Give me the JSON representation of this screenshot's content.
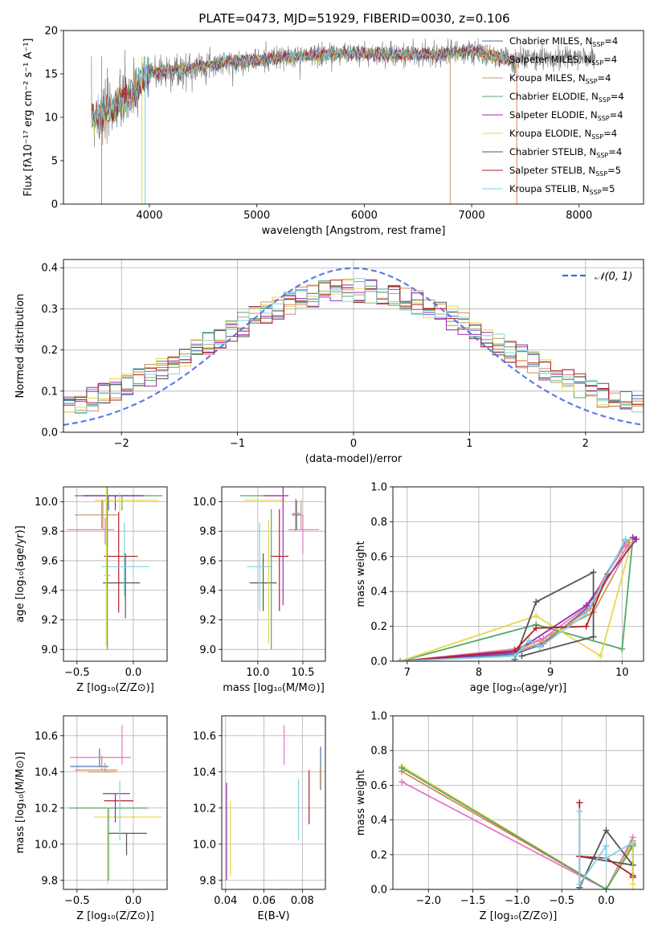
{
  "title": "PLATE=0473, MJD=51929, FIBERID=0030, z=0.106",
  "colors": {
    "c0": "#1f77b4",
    "c1": "#ff7f0e",
    "c2": "#bcbd22",
    "c3": "#2ca02c",
    "c4": "#9467bd",
    "c5": "#e377c2",
    "c6": "#7f7f7f",
    "c7": "#8b0000",
    "c8": "#17becf",
    "data": "#808080",
    "normal": "#4169e1",
    "m0": "#4c72b0",
    "m1": "#dd8452",
    "m2": "#c49a6c",
    "m3": "#55a868",
    "m4": "#9c27b0",
    "m5": "#e6d84a",
    "m6": "#555555",
    "m7": "#b22222",
    "m8": "#7fd3e0"
  },
  "legend": [
    {
      "label": "Chabrier MILES, N",
      "sub": "SSP",
      "suffix": "=4",
      "color": "m0"
    },
    {
      "label": "Salpeter MILES, N",
      "sub": "SSP",
      "suffix": "=4",
      "color": "m1"
    },
    {
      "label": "Kroupa MILES, N",
      "sub": "SSP",
      "suffix": "=4",
      "color": "m2"
    },
    {
      "label": "Chabrier ELODIE, N",
      "sub": "SSP",
      "suffix": "=4",
      "color": "m3"
    },
    {
      "label": "Salpeter ELODIE, N",
      "sub": "SSP",
      "suffix": "=4",
      "color": "m4"
    },
    {
      "label": "Kroupa ELODIE, N",
      "sub": "SSP",
      "suffix": "=4",
      "color": "m5"
    },
    {
      "label": "Chabrier STELIB, N",
      "sub": "SSP",
      "suffix": "=4",
      "color": "m6"
    },
    {
      "label": "Salpeter STELIB, N",
      "sub": "SSP",
      "suffix": "=5",
      "color": "m7"
    },
    {
      "label": "Kroupa STELIB, N",
      "sub": "SSP",
      "suffix": "=5",
      "color": "m8"
    }
  ],
  "chart_data": [
    {
      "id": "spectrum",
      "type": "line",
      "xlabel": "wavelength [Angstrom, rest frame]",
      "ylabel": "Flux [fλ10⁻¹⁷ erg cm⁻² s⁻¹ A⁻¹]",
      "xlim": [
        3200,
        8600
      ],
      "ylim": [
        0,
        20
      ],
      "xticks": [
        "4000",
        "5000",
        "6000",
        "7000",
        "8000"
      ],
      "yticks": [
        "0",
        "5",
        "10",
        "15",
        "20"
      ],
      "continuum": {
        "x": [
          3450,
          3550,
          3700,
          3850,
          3950,
          4050,
          4300,
          4600,
          5000,
          5400,
          5800,
          6200,
          6600,
          7000,
          7400
        ],
        "y": [
          10.2,
          10.0,
          11.5,
          12.5,
          14.5,
          15.2,
          15.4,
          16.2,
          16.6,
          17.0,
          17.4,
          17.3,
          17.2,
          17.6,
          16.5
        ]
      },
      "data_x_range": [
        3460,
        8150
      ]
    },
    {
      "id": "residuals",
      "type": "bar",
      "xlabel": "(data-model)/error",
      "ylabel": "Normed distribution",
      "xlim": [
        -2.5,
        2.5
      ],
      "ylim": [
        0,
        0.42
      ],
      "xticks": [
        "−2",
        "−1",
        "0",
        "1",
        "2"
      ],
      "yticks": [
        "0.0",
        "0.1",
        "0.2",
        "0.3",
        "0.4"
      ],
      "legend": "N(0,1)",
      "legend_math": "𝒩(0, 1)",
      "bin_width": 0.1
    },
    {
      "id": "age_vs_Z",
      "type": "scatter",
      "xlabel": "Z [log₁₀(Z/Z⊙)]",
      "ylabel": "age  [log₁₀(age/yr)]",
      "xlim": [
        -0.62,
        0.3
      ],
      "ylim": [
        8.92,
        10.1
      ],
      "xticks": [
        "−0.5",
        "0.0"
      ],
      "yticks": [
        "9.0",
        "9.2",
        "9.4",
        "9.6",
        "9.8",
        "10.0"
      ],
      "points": [
        {
          "x": -0.22,
          "y": 10.04,
          "xerr": [
            0.3,
            0.28
          ],
          "yerr": [
            0.1,
            0.0
          ],
          "c": "m0"
        },
        {
          "x": -0.28,
          "y": 9.91,
          "xerr": [
            0.24,
            0.12
          ],
          "yerr": [
            0.09,
            0.1
          ],
          "c": "m1"
        },
        {
          "x": -0.27,
          "y": 9.91,
          "xerr": [
            0.18,
            0.14
          ],
          "yerr": [
            0.1,
            0.1
          ],
          "c": "m2"
        },
        {
          "x": -0.1,
          "y": 10.04,
          "xerr": [
            0.34,
            0.36
          ],
          "yerr": [
            0.1,
            0.0
          ],
          "c": "m3"
        },
        {
          "x": -0.16,
          "y": 10.04,
          "xerr": [
            0.28,
            0.26
          ],
          "yerr": [
            0.1,
            0.0
          ],
          "c": "m4"
        },
        {
          "x": -0.12,
          "y": 10.01,
          "xerr": [
            0.22,
            0.35
          ],
          "yerr": [
            0.08,
            0.05
          ],
          "c": "m5"
        },
        {
          "x": -0.07,
          "y": 9.45,
          "xerr": [
            0.2,
            0.13
          ],
          "yerr": [
            0.24,
            0.2
          ],
          "c": "m6"
        },
        {
          "x": -0.13,
          "y": 9.63,
          "xerr": [
            0.13,
            0.17
          ],
          "yerr": [
            0.38,
            0.3
          ],
          "c": "m7"
        },
        {
          "x": -0.08,
          "y": 9.56,
          "xerr": [
            0.2,
            0.22
          ],
          "yerr": [
            0.2,
            0.3
          ],
          "c": "m8"
        },
        {
          "x": -0.25,
          "y": 9.81,
          "xerr": [
            0.34,
            0.08
          ],
          "yerr": [
            0.1,
            0.08
          ],
          "c": "c5"
        },
        {
          "x": -0.23,
          "y": 9.5,
          "xerr": [
            0.02,
            0.02
          ],
          "yerr": [
            0.5,
            0.6
          ],
          "c": "m3"
        },
        {
          "x": -0.24,
          "y": 9.5,
          "xerr": [
            0.02,
            0.02
          ],
          "yerr": [
            0.48,
            0.6
          ],
          "c": "m5"
        }
      ]
    },
    {
      "id": "age_vs_mass",
      "type": "scatter",
      "xlabel": "mass [log₁₀(M/M⊙)]",
      "ylabel": "",
      "xlim": [
        9.6,
        10.75
      ],
      "ylim": [
        8.92,
        10.1
      ],
      "xticks": [
        "10.0",
        "10.5"
      ],
      "yticks": [
        "9.0",
        "9.2",
        "9.4",
        "9.6",
        "9.8",
        "10.0"
      ],
      "points": [
        {
          "x": 10.43,
          "y": 9.91,
          "xerr": [
            0.05,
            0.05
          ],
          "yerr": [
            0.1,
            0.1
          ],
          "c": "m0"
        },
        {
          "x": 10.42,
          "y": 9.92,
          "xerr": [
            0.04,
            0.05
          ],
          "yerr": [
            0.12,
            0.1
          ],
          "c": "m1"
        },
        {
          "x": 10.48,
          "y": 9.91,
          "xerr": [
            0.02,
            0.02
          ],
          "yerr": [
            0.1,
            0.1
          ],
          "c": "m2"
        },
        {
          "x": 10.05,
          "y": 10.04,
          "xerr": [
            0.25,
            0.2
          ],
          "yerr": [
            0.0,
            0.0
          ],
          "c": "m3"
        },
        {
          "x": 10.24,
          "y": 10.04,
          "xerr": [
            0.17,
            0.1
          ],
          "yerr": [
            0.0,
            0.0
          ],
          "c": "m4"
        },
        {
          "x": 10.05,
          "y": 10.01,
          "xerr": [
            0.2,
            0.26
          ],
          "yerr": [
            0.0,
            0.0
          ],
          "c": "m5"
        },
        {
          "x": 10.06,
          "y": 9.45,
          "xerr": [
            0.15,
            0.15
          ],
          "yerr": [
            0.19,
            0.2
          ],
          "c": "m6"
        },
        {
          "x": 10.24,
          "y": 9.63,
          "xerr": [
            0.1,
            0.1
          ],
          "yerr": [
            0.37,
            0.32
          ],
          "c": "m7"
        },
        {
          "x": 10.02,
          "y": 9.56,
          "xerr": [
            0.14,
            0.13
          ],
          "yerr": [
            0.3,
            0.3
          ],
          "c": "m8"
        },
        {
          "x": 10.5,
          "y": 9.81,
          "xerr": [
            0.16,
            0.18
          ],
          "yerr": [
            0.16,
            0.1
          ],
          "c": "c5"
        },
        {
          "x": 10.28,
          "y": 9.7,
          "xerr": [
            0.0,
            0.0
          ],
          "yerr": [
            0.4,
            0.4
          ],
          "c": "m4"
        },
        {
          "x": 10.15,
          "y": 9.5,
          "xerr": [
            0.0,
            0.0
          ],
          "yerr": [
            0.5,
            0.45
          ],
          "c": "m3"
        },
        {
          "x": 10.12,
          "y": 9.5,
          "xerr": [
            0.0,
            0.0
          ],
          "yerr": [
            0.46,
            0.38
          ],
          "c": "m5"
        }
      ]
    },
    {
      "id": "massweight_vs_age",
      "type": "line",
      "xlabel": "age  [log₁₀(age/yr)]",
      "ylabel": "mass weight",
      "xlim": [
        6.8,
        10.3
      ],
      "ylim": [
        0,
        1.0
      ],
      "xticks": [
        "7",
        "8",
        "9",
        "10"
      ],
      "yticks": [
        "0.0",
        "0.2",
        "0.4",
        "0.6",
        "0.8",
        "1.0"
      ],
      "series": [
        {
          "c": "m0",
          "x": [
            6.9,
            8.5,
            8.9,
            9.5,
            10.05
          ],
          "y": [
            0.0,
            0.04,
            0.1,
            0.3,
            0.69
          ]
        },
        {
          "c": "m1",
          "x": [
            6.9,
            8.5,
            8.9,
            9.55,
            10.1
          ],
          "y": [
            0.0,
            0.05,
            0.11,
            0.3,
            0.68
          ]
        },
        {
          "c": "m2",
          "x": [
            6.9,
            8.5,
            8.85,
            9.6,
            10.1
          ],
          "y": [
            0.0,
            0.06,
            0.12,
            0.28,
            0.66
          ]
        },
        {
          "c": "c5",
          "x": [
            6.9,
            8.5,
            8.9,
            9.5,
            10.05
          ],
          "y": [
            0.0,
            0.07,
            0.13,
            0.31,
            0.67
          ]
        },
        {
          "c": "m3",
          "x": [
            6.9,
            8.8,
            10.0,
            10.15,
            10.18
          ],
          "y": [
            0.0,
            0.21,
            0.07,
            0.7,
            0.7
          ]
        },
        {
          "c": "m5",
          "x": [
            6.9,
            8.8,
            9.7,
            10.15,
            10.2
          ],
          "y": [
            0.0,
            0.26,
            0.03,
            0.71,
            0.7
          ]
        },
        {
          "c": "m4",
          "x": [
            6.9,
            8.5,
            9.5,
            10.2,
            10.15
          ],
          "y": [
            0.0,
            0.05,
            0.32,
            0.7,
            0.71
          ]
        },
        {
          "c": "m6",
          "x": [
            8.5,
            8.8,
            9.6,
            9.6,
            8.6
          ],
          "y": [
            0.01,
            0.34,
            0.51,
            0.14,
            0.03
          ]
        },
        {
          "c": "m7",
          "x": [
            6.9,
            8.5,
            8.8,
            9.5,
            9.8
          ],
          "y": [
            0.0,
            0.06,
            0.19,
            0.2,
            0.5
          ]
        },
        {
          "c": "m8",
          "x": [
            6.9,
            8.5,
            8.7,
            8.85,
            9.5,
            10.05
          ],
          "y": [
            0.0,
            0.03,
            0.12,
            0.08,
            0.27,
            0.7
          ]
        }
      ]
    },
    {
      "id": "mass_vs_Z",
      "type": "scatter",
      "xlabel": "Z [log₁₀(Z/Z⊙)]",
      "ylabel": "mass [log₁₀(M/M⊙)]",
      "xlim": [
        -0.62,
        0.3
      ],
      "ylim": [
        9.75,
        10.71
      ],
      "xticks": [
        "−0.5",
        "0.0"
      ],
      "yticks": [
        "9.8",
        "10.0",
        "10.2",
        "10.4",
        "10.6"
      ],
      "points": [
        {
          "x": -0.3,
          "y": 10.43,
          "xerr": [
            0.26,
            0.08
          ],
          "yerr": [
            0.0,
            0.1
          ],
          "c": "m0"
        },
        {
          "x": -0.28,
          "y": 10.41,
          "xerr": [
            0.24,
            0.14
          ],
          "yerr": [
            0.0,
            0.08
          ],
          "c": "m1"
        },
        {
          "x": -0.25,
          "y": 10.4,
          "xerr": [
            0.15,
            0.1
          ],
          "yerr": [
            0.0,
            0.05
          ],
          "c": "m2"
        },
        {
          "x": -0.22,
          "y": 10.2,
          "xerr": [
            0.35,
            0.35
          ],
          "yerr": [
            0.0,
            0.0
          ],
          "c": "m3"
        },
        {
          "x": -0.15,
          "y": 10.28,
          "xerr": [
            0.12,
            0.12
          ],
          "yerr": [
            0.0,
            0.0
          ],
          "c": "m4"
        },
        {
          "x": -0.15,
          "y": 10.15,
          "xerr": [
            0.2,
            0.4
          ],
          "yerr": [
            0.0,
            0.0
          ],
          "c": "m5"
        },
        {
          "x": -0.06,
          "y": 10.06,
          "xerr": [
            0.16,
            0.18
          ],
          "yerr": [
            0.12,
            0.0
          ],
          "c": "m6"
        },
        {
          "x": -0.12,
          "y": 10.24,
          "xerr": [
            0.14,
            0.12
          ],
          "yerr": [
            0.0,
            0.0
          ],
          "c": "m7"
        },
        {
          "x": -0.12,
          "y": 10.1,
          "xerr": [
            0.0,
            0.0
          ],
          "yerr": [
            0.08,
            0.25
          ],
          "c": "m8"
        },
        {
          "x": -0.3,
          "y": 10.48,
          "xerr": [
            0.26,
            0.28
          ],
          "yerr": [
            0.0,
            0.0
          ],
          "c": "c5"
        },
        {
          "x": -0.1,
          "y": 10.66,
          "xerr": [
            0.0,
            0.0
          ],
          "yerr": [
            0.0,
            0.0
          ],
          "c": "c5"
        },
        {
          "x": -0.23,
          "y": 10.0,
          "xerr": [
            0.0,
            0.0
          ],
          "yerr": [
            0.22,
            0.2
          ],
          "c": "m5"
        },
        {
          "x": -0.22,
          "y": 10.0,
          "xerr": [
            0.0,
            0.0
          ],
          "yerr": [
            0.2,
            0.2
          ],
          "c": "m3"
        },
        {
          "x": -0.16,
          "y": 10.2,
          "xerr": [
            0.0,
            0.0
          ],
          "yerr": [
            0.08,
            0.08
          ],
          "c": "m4"
        }
      ]
    },
    {
      "id": "mass_vs_EBV",
      "type": "scatter",
      "xlabel": "E(B-V)",
      "ylabel": "",
      "xlim": [
        0.038,
        0.092
      ],
      "ylim": [
        9.75,
        10.71
      ],
      "xticks": [
        "0.04",
        "0.06",
        "0.08"
      ],
      "yticks": [
        "9.8",
        "10.0",
        "10.2",
        "10.4",
        "10.6"
      ],
      "vlines": [
        {
          "x": 0.0405,
          "y0": 9.8,
          "y1": 10.34,
          "c": "m4"
        },
        {
          "x": 0.0425,
          "y0": 9.82,
          "y1": 10.24,
          "c": "m5"
        },
        {
          "x": 0.0705,
          "y0": 10.44,
          "y1": 10.66,
          "c": "c5"
        },
        {
          "x": 0.078,
          "y0": 10.02,
          "y1": 10.36,
          "c": "m8"
        },
        {
          "x": 0.0835,
          "y0": 10.11,
          "y1": 10.41,
          "c": "m7"
        },
        {
          "x": 0.0895,
          "y0": 10.3,
          "y1": 10.54,
          "c": "m0"
        },
        {
          "x": 0.0893,
          "y0": 10.3,
          "y1": 10.44,
          "c": "m2"
        }
      ]
    },
    {
      "id": "massweight_vs_Z",
      "type": "line",
      "xlabel": "Z [log₁₀(Z/Z⊙)]",
      "ylabel": "mass weight",
      "xlim": [
        -2.4,
        0.42
      ],
      "ylim": [
        0,
        1.0
      ],
      "xticks": [
        "−2.0",
        "−1.5",
        "−1.0",
        "−0.5",
        "0.0"
      ],
      "yticks": [
        "0.0",
        "0.2",
        "0.4",
        "0.6",
        "0.8",
        "1.0"
      ],
      "series": [
        {
          "c": "m0",
          "x": [
            -2.3,
            0.0,
            0.3
          ],
          "y": [
            0.7,
            0.0,
            0.26
          ]
        },
        {
          "c": "m1",
          "x": [
            -2.3,
            0.0,
            0.3
          ],
          "y": [
            0.68,
            0.0,
            0.28
          ]
        },
        {
          "c": "c5",
          "x": [
            -2.3,
            0.0,
            0.3
          ],
          "y": [
            0.62,
            0.0,
            0.3
          ]
        },
        {
          "c": "m5",
          "x": [
            -2.3,
            0.0,
            0.3,
            0.3
          ],
          "y": [
            0.71,
            0.0,
            0.27,
            0.03
          ]
        },
        {
          "c": "m3",
          "x": [
            -2.3,
            0.0,
            0.3,
            0.3
          ],
          "y": [
            0.7,
            0.0,
            0.25,
            0.07
          ]
        },
        {
          "c": "m6",
          "x": [
            -0.3,
            0.0,
            0.3,
            -0.3,
            -0.3
          ],
          "y": [
            0.01,
            0.34,
            0.14,
            0.19,
            0.01
          ]
        },
        {
          "c": "m7",
          "x": [
            -0.3,
            -0.3,
            0.0,
            0.3,
            0.3
          ],
          "y": [
            0.5,
            0.19,
            0.18,
            0.08,
            0.07
          ]
        },
        {
          "c": "m8",
          "x": [
            -0.3,
            -0.3,
            0.0,
            0.0,
            0.3
          ],
          "y": [
            0.45,
            0.03,
            0.25,
            0.18,
            0.27
          ]
        }
      ]
    }
  ]
}
